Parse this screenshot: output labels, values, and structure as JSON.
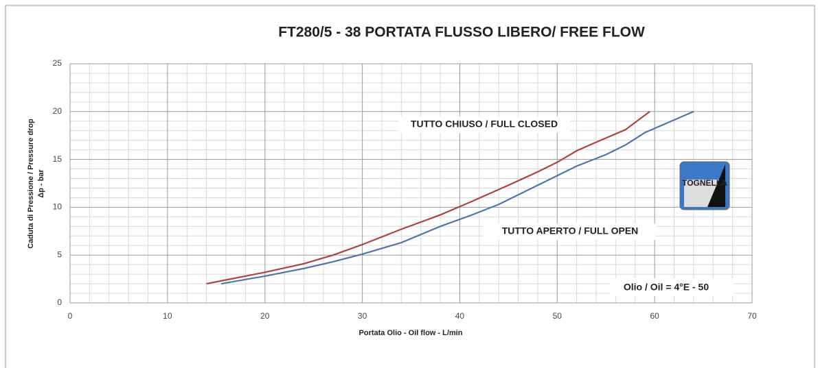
{
  "chart_data": {
    "type": "line",
    "title": "FT280/5 - 38 PORTATA FLUSSO LIBERO/ FREE FLOW",
    "x_label": "Portata Olio - Oil flow -  L/min",
    "y_label": [
      "Caduta di Pressione / Pressure drop",
      "Δp - bar"
    ],
    "annotation": "Olio / Oil = 4°E - 50",
    "logo_text": "TOGNELLA",
    "xlim": [
      0,
      70
    ],
    "xticks": [
      0,
      10,
      20,
      30,
      40,
      50,
      60,
      70
    ],
    "ylim": [
      0,
      25
    ],
    "yticks": [
      0,
      5,
      10,
      15,
      20,
      25
    ],
    "grid": true,
    "series": [
      {
        "name": "TUTTO CHIUSO / FULL CLOSED",
        "color": "#b5403a",
        "x": [
          14,
          16,
          20,
          24,
          27,
          30,
          34,
          38,
          41,
          45,
          48,
          50,
          52,
          54,
          57,
          59.5
        ],
        "values": [
          2,
          2.4,
          3.2,
          4.1,
          5,
          6.1,
          7.7,
          9.2,
          10.5,
          12.3,
          13.7,
          14.7,
          15.9,
          16.8,
          18.1,
          20
        ]
      },
      {
        "name": "TUTTO APERTO / FULL OPEN",
        "color": "#4a76b0",
        "x": [
          15.5,
          20,
          24,
          27,
          30,
          34,
          38,
          41,
          44,
          47,
          50,
          52,
          55,
          57,
          59,
          61.5,
          64
        ],
        "values": [
          2,
          2.8,
          3.6,
          4.3,
          5.1,
          6.3,
          8,
          9.1,
          10.3,
          11.8,
          13.3,
          14.3,
          15.5,
          16.5,
          17.8,
          18.9,
          20
        ]
      }
    ]
  }
}
